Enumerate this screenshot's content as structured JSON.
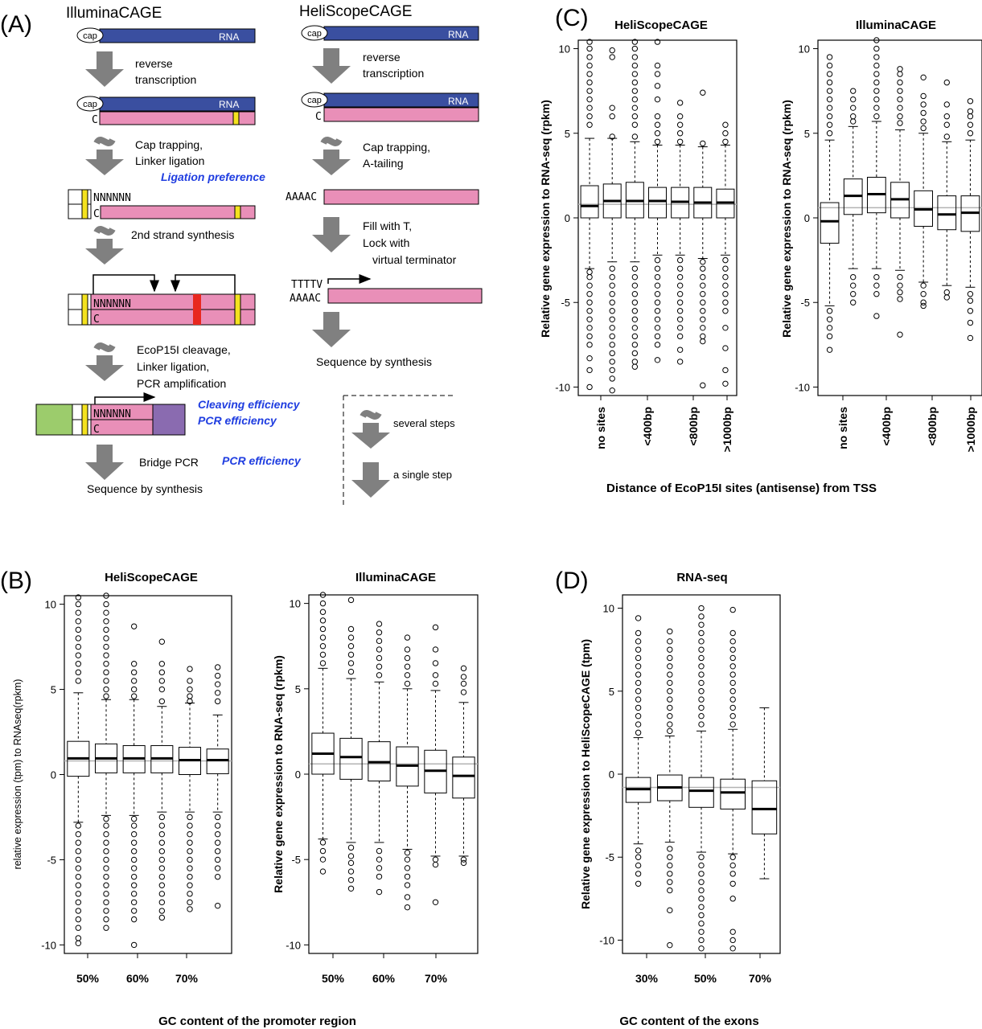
{
  "colors": {
    "rna": "#3a4fa0",
    "dna": "#e98fb8",
    "marker_yellow": "#f4e21f",
    "cleavage_red": "#e8281f",
    "adapter_green": "#9ccc6c",
    "adapter_purple": "#8a6bb0",
    "note_blue": "#1f3de0",
    "arrow_gray": "#808080",
    "median_line": "#b3b3b3"
  },
  "panelA": {
    "label": "(A)",
    "illumina": {
      "title": "IlluminaCAGE",
      "cap": "cap",
      "rna": "RNA",
      "c": "C",
      "n6": "NNNNNN",
      "step1": [
        "reverse",
        "transcription"
      ],
      "step2": [
        "Cap trapping,",
        "Linker ligation"
      ],
      "note1": "Ligation preference",
      "step3": "2nd strand synthesis",
      "step4": [
        "EcoP15I cleavage,",
        "Linker ligation,",
        "PCR amplification"
      ],
      "note2": "Cleaving efficiency",
      "note3": "PCR efficiency",
      "step5": "Bridge PCR",
      "note4": "PCR efficiency",
      "step6": "Sequence by synthesis"
    },
    "helicos": {
      "title": "HeliScopeCAGE",
      "cap": "cap",
      "rna": "RNA",
      "c": "C",
      "step1": [
        "reverse",
        "transcription"
      ],
      "step2": [
        "Cap trapping,",
        "A-tailing"
      ],
      "aaaac": "AAAAC",
      "step3": [
        "Fill with T,",
        "Lock with",
        "virtual terminator"
      ],
      "ttttv": "TTTTV",
      "step4": "Sequence by synthesis"
    },
    "legend": {
      "several": "several steps",
      "single": "a single step"
    }
  },
  "panelB": {
    "label": "(B)",
    "xtitle": "GC content of the promoter region"
  },
  "panelC": {
    "label": "(C)",
    "xtitle": "Distance of EcoP15I sites (antisense) from  TSS"
  },
  "panelD": {
    "label": "(D)",
    "xtitle": "GC content of the exons"
  },
  "chart_data": [
    {
      "id": "B1",
      "type": "box",
      "title": "HeliScopeCAGE",
      "ylabel": "relative expression (tpm) to RNAseq(rpkm)",
      "ylim": [
        -10.5,
        10.5
      ],
      "yticks": [
        -10,
        -5,
        0,
        5,
        10
      ],
      "xticklabels": [
        "50%",
        "60%",
        "70%"
      ],
      "xticks_at": [
        0,
        2,
        4
      ],
      "reference_line": 0.8,
      "boxes": [
        {
          "q1": -0.1,
          "median": 0.95,
          "q3": 1.95,
          "whisker_low": -2.8,
          "whisker_high": 4.8,
          "outliers": [
            -9.9,
            -9.6,
            -9.0,
            -8.5,
            -8.0,
            -7.5,
            -7.0,
            -6.5,
            -6.0,
            -5.5,
            -5.0,
            -4.5,
            -4.0,
            -3.5,
            -3.0,
            5.5,
            6.0,
            6.5,
            7.0,
            7.5,
            8.0,
            8.5,
            9.0,
            9.5,
            10.0,
            10.4
          ]
        },
        {
          "q1": 0.1,
          "median": 0.95,
          "q3": 1.8,
          "whisker_low": -2.4,
          "whisker_high": 4.4,
          "outliers": [
            -9.0,
            -8.5,
            -8.0,
            -7.5,
            -7.0,
            -6.5,
            -6.0,
            -5.5,
            -5.0,
            -4.5,
            -4.0,
            -3.5,
            -3.0,
            -2.6,
            4.6,
            5.0,
            5.5,
            6.0,
            6.5,
            7.0,
            7.5,
            8.0,
            8.5,
            9.0,
            9.5,
            10.0,
            10.5
          ]
        },
        {
          "q1": 0.1,
          "median": 0.95,
          "q3": 1.7,
          "whisker_low": -2.4,
          "whisker_high": 4.4,
          "outliers": [
            -10.0,
            -8.5,
            -8.0,
            -7.5,
            -7.0,
            -6.5,
            -6.0,
            -5.5,
            -5.0,
            -4.5,
            -4.0,
            -3.5,
            -3.0,
            -2.6,
            4.6,
            5.0,
            5.5,
            6.0,
            6.5,
            8.7
          ]
        },
        {
          "q1": 0.1,
          "median": 0.95,
          "q3": 1.7,
          "whisker_low": -2.2,
          "whisker_high": 4.0,
          "outliers": [
            -8.4,
            -8.0,
            -7.5,
            -7.0,
            -6.5,
            -6.0,
            -5.5,
            -5.0,
            -4.5,
            -4.0,
            -3.5,
            -3.0,
            -2.5,
            4.3,
            5.0,
            5.5,
            6.0,
            6.5,
            7.8
          ]
        },
        {
          "q1": 0.0,
          "median": 0.85,
          "q3": 1.6,
          "whisker_low": -2.2,
          "whisker_high": 4.2,
          "outliers": [
            -7.9,
            -7.5,
            -7.0,
            -6.5,
            -6.0,
            -5.5,
            -5.0,
            -4.5,
            -4.0,
            -3.5,
            -3.0,
            -2.5,
            4.3,
            4.6,
            5.0,
            5.5,
            6.2
          ]
        },
        {
          "q1": 0.05,
          "median": 0.85,
          "q3": 1.5,
          "whisker_low": -2.2,
          "whisker_high": 3.5,
          "outliers": [
            -7.7,
            -6.0,
            -5.5,
            -5.0,
            -4.5,
            -4.0,
            -3.5,
            -3.0,
            -2.5,
            4.3,
            4.8,
            5.3,
            5.8,
            6.3
          ]
        }
      ]
    },
    {
      "id": "B2",
      "type": "box",
      "title": "IlluminaCAGE",
      "ylabel": "Relative gene expression to RNA-seq (rpkm)",
      "ylim": [
        -10.5,
        10.5
      ],
      "yticks": [
        -10,
        -5,
        0,
        5,
        10
      ],
      "xticklabels": [
        "50%",
        "60%",
        "70%"
      ],
      "xticks_at": [
        0,
        2,
        4
      ],
      "reference_line": 0.6,
      "boxes": [
        {
          "q1": 0.0,
          "median": 1.2,
          "q3": 2.4,
          "whisker_low": -3.8,
          "whisker_high": 6.2,
          "outliers": [
            -5.7,
            -5.0,
            -4.5,
            -4.0,
            6.5,
            7.0,
            7.5,
            8.0,
            8.5,
            9.0,
            9.5,
            10.0,
            10.5
          ]
        },
        {
          "q1": -0.3,
          "median": 1.0,
          "q3": 2.1,
          "whisker_low": -4.0,
          "whisker_high": 5.6,
          "outliers": [
            -6.7,
            -6.2,
            -5.7,
            -5.2,
            -4.8,
            -4.3,
            6.0,
            6.5,
            7.0,
            7.5,
            8.0,
            8.5,
            10.2
          ]
        },
        {
          "q1": -0.4,
          "median": 0.7,
          "q3": 1.9,
          "whisker_low": -4.0,
          "whisker_high": 5.4,
          "outliers": [
            -6.9,
            -6.0,
            -5.5,
            -5.0,
            -4.5,
            5.8,
            6.3,
            6.8,
            7.3,
            7.8,
            8.3,
            8.8
          ]
        },
        {
          "q1": -0.7,
          "median": 0.5,
          "q3": 1.6,
          "whisker_low": -4.4,
          "whisker_high": 5.0,
          "outliers": [
            -7.8,
            -7.2,
            -6.5,
            -6.0,
            -5.5,
            -5.0,
            -4.6,
            5.3,
            5.8,
            6.3,
            6.8,
            7.3,
            8.0
          ]
        },
        {
          "q1": -1.1,
          "median": 0.2,
          "q3": 1.4,
          "whisker_low": -4.8,
          "whisker_high": 4.9,
          "outliers": [
            -7.5,
            -5.3,
            -5.0,
            5.3,
            5.8,
            6.5,
            7.3,
            8.6
          ]
        },
        {
          "q1": -1.4,
          "median": -0.1,
          "q3": 1.0,
          "whisker_low": -4.8,
          "whisker_high": 4.2,
          "outliers": [
            -5.2,
            -5.0,
            4.8,
            5.3,
            5.7,
            6.2
          ]
        }
      ]
    },
    {
      "id": "C1",
      "type": "box",
      "title": "HeliScopeCAGE",
      "ylabel": "Relative gene expression to RNA-seq (rpkm)",
      "ylim": [
        -10.5,
        10.5
      ],
      "yticks": [
        -10,
        -5,
        0,
        5,
        10
      ],
      "xticklabels": [
        "no sites",
        "<400bp",
        "<800bp",
        ">1000bp"
      ],
      "xticks_at": [
        0,
        2,
        4,
        6
      ],
      "reference_line": 0.8,
      "boxes": [
        {
          "q1": 0.0,
          "median": 0.7,
          "q3": 1.9,
          "whisker_low": -3.0,
          "whisker_high": 4.7,
          "outliers": [
            -10.0,
            -9.0,
            -8.3,
            -7.5,
            -7.0,
            -6.5,
            -6.0,
            -5.5,
            -5.0,
            -4.5,
            -4.0,
            -3.5,
            -3.2,
            5.5,
            6.0,
            6.5,
            7.0,
            7.5,
            8.0,
            8.5,
            9.0,
            9.5,
            10.0,
            10.4
          ]
        },
        {
          "q1": 0.0,
          "median": 1.0,
          "q3": 2.0,
          "whisker_low": -2.6,
          "whisker_high": 4.7,
          "outliers": [
            -10.2,
            -9.5,
            -9.0,
            -8.5,
            -8.0,
            -7.5,
            -7.0,
            -6.5,
            -6.0,
            -5.5,
            -5.0,
            -4.5,
            -4.0,
            -3.5,
            -3.0,
            4.8,
            6.0,
            6.5,
            9.5,
            9.9
          ]
        },
        {
          "q1": 0.0,
          "median": 1.0,
          "q3": 2.1,
          "whisker_low": -2.6,
          "whisker_high": 4.5,
          "outliers": [
            -8.8,
            -8.5,
            -8.0,
            -7.5,
            -7.0,
            -6.5,
            -6.0,
            -5.5,
            -5.0,
            -4.5,
            -4.0,
            -3.5,
            -3.0,
            4.8,
            5.5,
            6.0,
            6.5,
            7.0,
            7.5,
            8.0,
            8.5,
            9.0,
            9.5,
            10.0,
            10.4
          ]
        },
        {
          "q1": 0.0,
          "median": 1.0,
          "q3": 1.8,
          "whisker_low": -2.2,
          "whisker_high": 4.3,
          "outliers": [
            -8.4,
            -7.5,
            -7.0,
            -6.5,
            -6.0,
            -5.5,
            -5.0,
            -4.5,
            -4.0,
            -3.5,
            -3.0,
            -2.5,
            4.5,
            5.0,
            5.5,
            6.0,
            7.0,
            7.8,
            8.5,
            9.0,
            10.4
          ]
        },
        {
          "q1": 0.0,
          "median": 0.95,
          "q3": 1.8,
          "whisker_low": -2.2,
          "whisker_high": 4.3,
          "outliers": [
            -8.5,
            -7.8,
            -7.0,
            -6.5,
            -6.0,
            -5.5,
            -5.0,
            -4.5,
            -4.0,
            -3.5,
            -3.0,
            -2.5,
            4.5,
            5.0,
            5.5,
            6.0,
            6.8
          ]
        },
        {
          "q1": 0.0,
          "median": 0.9,
          "q3": 1.8,
          "whisker_low": -2.4,
          "whisker_high": 4.2,
          "outliers": [
            -9.9,
            -7.3,
            -7.0,
            -6.5,
            -6.0,
            -5.5,
            -5.0,
            -4.5,
            -4.0,
            -3.5,
            -3.0,
            -2.6,
            4.4,
            7.4
          ]
        },
        {
          "q1": 0.0,
          "median": 0.9,
          "q3": 1.7,
          "whisker_low": -2.2,
          "whisker_high": 4.3,
          "outliers": [
            -9.8,
            -9.0,
            -7.7,
            -6.5,
            -5.5,
            -5.0,
            -4.5,
            -4.0,
            -3.5,
            -3.0,
            -2.5,
            4.5,
            5.0,
            5.5
          ]
        }
      ]
    },
    {
      "id": "C2",
      "type": "box",
      "title": "IlluminaCAGE",
      "ylabel": "Relative gene expression to RNA-seq (rpkm)",
      "ylim": [
        -10.5,
        10.5
      ],
      "yticks": [
        -10,
        -5,
        0,
        5,
        10
      ],
      "xticklabels": [
        "no sites",
        "<400bp",
        "<800bp",
        ">1000bp"
      ],
      "xticks_at": [
        0,
        2,
        4,
        6
      ],
      "reference_line": 0.6,
      "boxes": [
        {
          "q1": -1.5,
          "median": -0.2,
          "q3": 0.9,
          "whisker_low": -5.2,
          "whisker_high": 4.6,
          "outliers": [
            -7.8,
            -7.0,
            -6.5,
            -6.0,
            -5.5,
            5.0,
            5.5,
            6.0,
            6.5,
            7.0,
            7.5,
            8.0,
            8.5,
            9.0,
            9.5
          ]
        },
        {
          "q1": 0.2,
          "median": 1.3,
          "q3": 2.3,
          "whisker_low": -3.0,
          "whisker_high": 5.4,
          "outliers": [
            -5.0,
            -4.5,
            -4.0,
            -3.5,
            5.7,
            6.0,
            6.5,
            7.0,
            7.5,
            10.6
          ]
        },
        {
          "q1": 0.3,
          "median": 1.4,
          "q3": 2.4,
          "whisker_low": -3.0,
          "whisker_high": 5.7,
          "outliers": [
            -5.8,
            -4.5,
            -4.0,
            -3.5,
            6.0,
            6.5,
            7.0,
            7.5,
            8.0,
            8.5,
            9.0,
            9.5,
            10.0,
            10.5
          ]
        },
        {
          "q1": 0.0,
          "median": 1.1,
          "q3": 2.1,
          "whisker_low": -3.1,
          "whisker_high": 5.2,
          "outliers": [
            -6.9,
            -4.8,
            -4.4,
            -4.0,
            -3.5,
            5.6,
            6.0,
            6.5,
            7.0,
            7.5,
            8.0,
            8.5,
            8.8
          ]
        },
        {
          "q1": -0.5,
          "median": 0.5,
          "q3": 1.6,
          "whisker_low": -3.8,
          "whisker_high": 5.0,
          "outliers": [
            -5.2,
            -5.0,
            -4.5,
            -4.0,
            5.3,
            5.7,
            6.2,
            6.7,
            7.2,
            8.3
          ]
        },
        {
          "q1": -0.7,
          "median": 0.2,
          "q3": 1.3,
          "whisker_low": -4.0,
          "whisker_high": 4.5,
          "outliers": [
            -4.7,
            -4.4,
            4.8,
            5.5,
            6.0,
            6.7,
            8.0
          ]
        },
        {
          "q1": -0.8,
          "median": 0.3,
          "q3": 1.3,
          "whisker_low": -4.1,
          "whisker_high": 4.6,
          "outliers": [
            -7.1,
            -6.2,
            -5.5,
            -4.9,
            -4.5,
            5.0,
            5.5,
            6.0,
            6.3,
            6.9
          ]
        }
      ]
    },
    {
      "id": "D",
      "type": "box",
      "title": "RNA-seq",
      "ylabel": "Relative gene expression to HeliScopeCAGE (tpm)",
      "ylim": [
        -10.8,
        10.8
      ],
      "yticks": [
        -10,
        -5,
        0,
        5,
        10
      ],
      "xticklabels": [
        "30%",
        "50%",
        "70%"
      ],
      "xticks_at": [
        0,
        2,
        4
      ],
      "reference_line": -0.8,
      "boxes": [
        {
          "q1": -1.7,
          "median": -0.9,
          "q3": -0.2,
          "whisker_low": -4.2,
          "whisker_high": 2.2,
          "outliers": [
            -6.6,
            -6.0,
            -5.5,
            -5.0,
            -4.6,
            2.5,
            3.0,
            3.5,
            4.0,
            4.5,
            5.0,
            5.5,
            6.0,
            6.5,
            7.0,
            7.5,
            8.0,
            8.5,
            9.4
          ]
        },
        {
          "q1": -1.6,
          "median": -0.8,
          "q3": -0.05,
          "whisker_low": -4.1,
          "whisker_high": 2.3,
          "outliers": [
            -10.3,
            -8.2,
            -7.0,
            -6.5,
            -6.0,
            -5.5,
            -5.0,
            -4.5,
            2.6,
            3.0,
            3.5,
            4.0,
            4.5,
            5.0,
            5.5,
            6.0,
            6.5,
            7.0,
            7.5,
            8.0,
            8.6
          ]
        },
        {
          "q1": -2.0,
          "median": -1.0,
          "q3": -0.2,
          "whisker_low": -4.7,
          "whisker_high": 2.6,
          "outliers": [
            -10.5,
            -10.0,
            -9.5,
            -9.0,
            -8.5,
            -8.0,
            -7.5,
            -7.0,
            -6.5,
            -6.0,
            -5.5,
            -5.0,
            3.0,
            3.5,
            4.0,
            4.5,
            5.0,
            5.5,
            6.0,
            6.5,
            7.0,
            7.5,
            8.0,
            8.5,
            9.0,
            9.5,
            10.0
          ]
        },
        {
          "q1": -2.1,
          "median": -1.1,
          "q3": -0.3,
          "whisker_low": -4.8,
          "whisker_high": 2.7,
          "outliers": [
            -10.5,
            -10.0,
            -9.5,
            -7.5,
            -6.6,
            -6.0,
            -5.5,
            -5.0,
            3.0,
            3.5,
            4.0,
            4.5,
            5.0,
            5.5,
            6.0,
            6.5,
            7.0,
            7.5,
            8.0,
            8.5,
            9.9
          ]
        },
        {
          "q1": -3.6,
          "median": -2.1,
          "q3": -0.4,
          "whisker_low": -6.3,
          "whisker_high": 4.0,
          "outliers": []
        }
      ]
    }
  ]
}
